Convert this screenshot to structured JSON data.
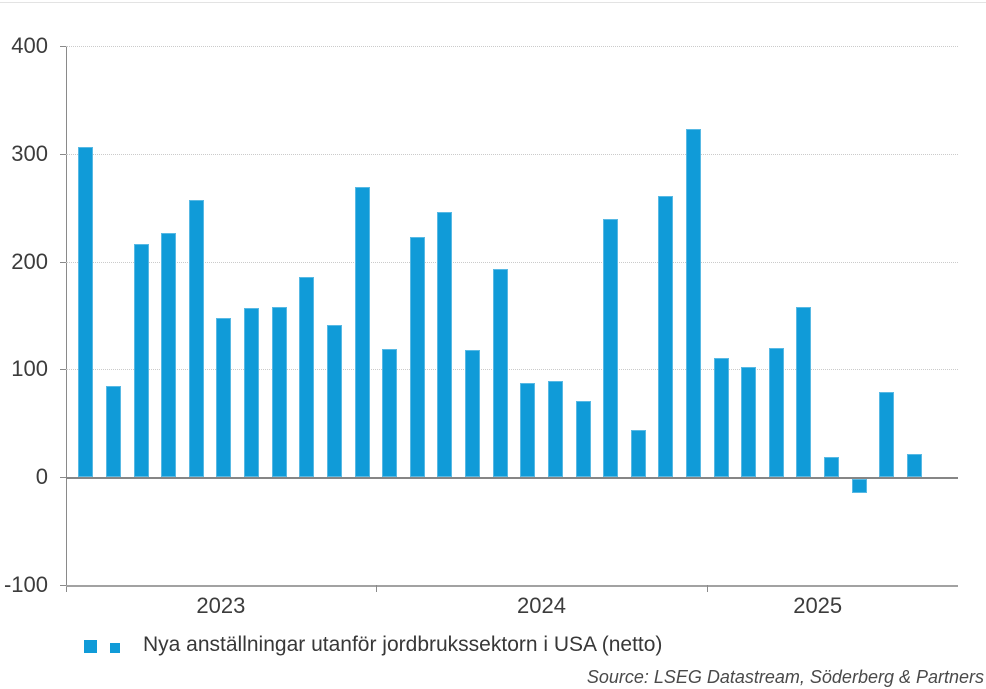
{
  "legend": {
    "label": "Nya anställningar utanför jordbrukssektorn i USA (netto)"
  },
  "source": {
    "text": "Source: LSEG Datastream, Söderberg & Partners"
  },
  "colors": {
    "bar": "#109bd8",
    "axis": "#8a8a8a",
    "gridline": "#cbcbcb",
    "text": "#3c3c3c"
  },
  "chart_data": {
    "type": "bar",
    "title": "",
    "series_name": "Nya anställningar utanför jordbrukssektorn i USA (netto)",
    "categories": [
      "2023-02",
      "2023-03",
      "2023-04",
      "2023-05",
      "2023-06",
      "2023-07",
      "2023-08",
      "2023-09",
      "2023-10",
      "2023-11",
      "2023-12",
      "2024-01",
      "2024-02",
      "2024-03",
      "2024-04",
      "2024-05",
      "2024-06",
      "2024-07",
      "2024-08",
      "2024-09",
      "2024-10",
      "2024-11",
      "2024-12",
      "2025-01",
      "2025-02",
      "2025-03",
      "2025-04",
      "2025-05",
      "2025-06",
      "2025-07",
      "2025-08"
    ],
    "values": [
      306,
      85,
      216,
      227,
      257,
      148,
      157,
      158,
      186,
      141,
      269,
      119,
      223,
      246,
      118,
      193,
      87,
      89,
      71,
      240,
      44,
      261,
      323,
      111,
      102,
      120,
      158,
      19,
      -13,
      79,
      22
    ],
    "year_groups": [
      {
        "label": "2023",
        "months": 11
      },
      {
        "label": "2024",
        "months": 12
      },
      {
        "label": "2025",
        "months": 8
      }
    ],
    "xlabel": "",
    "ylabel": "",
    "ylim": [
      -100,
      400
    ],
    "yticks": [
      400,
      300,
      200,
      100,
      0,
      -100
    ],
    "grid": "horizontal-dotted",
    "legend_position": "bottom-left",
    "bar_color": "#109bd8"
  }
}
